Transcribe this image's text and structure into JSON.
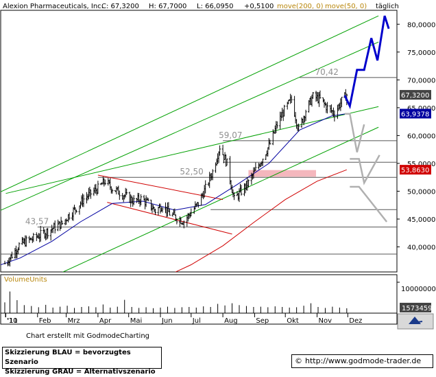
{
  "title_bar": {
    "name": "Alexion Pharmaceuticals, Inc.",
    "close": "C: 67,3200",
    "high": "H: 67,7000",
    "low": "L: 66,0950",
    "change": "+0,5100",
    "ma200": "move(200, 0)",
    "ma50": "move(50, 0)",
    "period": "täglich"
  },
  "credit": "Chart erstellt mit GodmodeCharting",
  "legend": {
    "blue": "Skizzierung BLAU = bevorzugtes Szenario",
    "grey": "Skizzierung GRAU = Alternativszenario"
  },
  "url": "http://www.godmode-trader.de",
  "copyright_symbol": "©",
  "colors": {
    "price": "#000000",
    "ma200": "#d00000",
    "ma50": "#0000a0",
    "trend": "#00a000",
    "channel": "#d00000",
    "blue_scenario": "#0000cc",
    "grey_scenario": "#b0b0b0",
    "gap_zone": "#f4b7bd"
  },
  "chart_data": {
    "type": "line",
    "title": "Alexion Pharmaceuticals, Inc.",
    "period": "täglich",
    "x_tick_labels": [
      "'10",
      "'11",
      "Feb",
      "Mrz",
      "Apr",
      "Mai",
      "Jun",
      "Jul",
      "Aug",
      "Sep",
      "Okt",
      "Nov",
      "Dez"
    ],
    "y_tick_labels": [
      "40,0000",
      "45,0000",
      "50,0000",
      "55,0000",
      "60,0000",
      "65,0000",
      "70,0000",
      "75,0000",
      "80,0000"
    ],
    "ylim": [
      35.5,
      82.5
    ],
    "log_scale": false,
    "grid": false,
    "price_series": {
      "name": "Alexion Pharmaceuticals, Inc.",
      "points": [
        [
          "2010-12-31",
          37.0
        ],
        [
          "2011-01-07",
          38.5
        ],
        [
          "2011-01-14",
          40.3
        ],
        [
          "2011-01-21",
          41.0
        ],
        [
          "2011-01-28",
          41.5
        ],
        [
          "2011-02-04",
          42.2
        ],
        [
          "2011-02-11",
          42.8
        ],
        [
          "2011-02-18",
          43.6
        ],
        [
          "2011-02-25",
          44.2
        ],
        [
          "2011-03-04",
          45.8
        ],
        [
          "2011-03-11",
          47.0
        ],
        [
          "2011-03-18",
          48.6
        ],
        [
          "2011-03-25",
          49.6
        ],
        [
          "2011-04-01",
          50.5
        ],
        [
          "2011-04-08",
          51.8
        ],
        [
          "2011-04-15",
          50.5
        ],
        [
          "2011-04-22",
          49.8
        ],
        [
          "2011-04-29",
          49.0
        ],
        [
          "2011-05-06",
          48.2
        ],
        [
          "2011-05-13",
          48.6
        ],
        [
          "2011-05-20",
          47.8
        ],
        [
          "2011-05-27",
          46.5
        ],
        [
          "2011-06-03",
          47.5
        ],
        [
          "2011-06-10",
          46.0
        ],
        [
          "2011-06-17",
          45.2
        ],
        [
          "2011-06-24",
          44.6
        ],
        [
          "2011-07-01",
          46.2
        ],
        [
          "2011-07-08",
          47.8
        ],
        [
          "2011-07-15",
          50.5
        ],
        [
          "2011-07-22",
          53.5
        ],
        [
          "2011-07-29",
          58.0
        ],
        [
          "2011-08-05",
          55.0
        ],
        [
          "2011-08-12",
          48.5
        ],
        [
          "2011-08-19",
          50.0
        ],
        [
          "2011-08-26",
          51.5
        ],
        [
          "2011-09-02",
          53.8
        ],
        [
          "2011-09-09",
          56.0
        ],
        [
          "2011-09-16",
          58.5
        ],
        [
          "2011-09-23",
          62.0
        ],
        [
          "2011-09-30",
          64.5
        ],
        [
          "2011-10-07",
          66.5
        ],
        [
          "2011-10-14",
          61.0
        ],
        [
          "2011-10-21",
          64.5
        ],
        [
          "2011-10-28",
          67.0
        ],
        [
          "2011-11-04",
          66.5
        ],
        [
          "2011-11-11",
          65.0
        ],
        [
          "2011-11-18",
          64.0
        ],
        [
          "2011-11-25",
          66.2
        ],
        [
          "2011-11-30",
          67.32
        ]
      ]
    },
    "series": [
      {
        "name": "move(200, 0)",
        "points": [
          [
            "2011-06-10",
            35.0
          ],
          [
            "2011-07-01",
            36.8
          ],
          [
            "2011-08-01",
            40.2
          ],
          [
            "2011-09-01",
            44.5
          ],
          [
            "2011-10-01",
            48.5
          ],
          [
            "2011-11-01",
            51.8
          ],
          [
            "2011-11-30",
            53.86
          ]
        ]
      },
      {
        "name": "move(50, 0)",
        "points": [
          [
            "2010-12-15",
            36.0
          ],
          [
            "2011-01-15",
            38.0
          ],
          [
            "2011-02-15",
            41.0
          ],
          [
            "2011-03-15",
            44.5
          ],
          [
            "2011-04-15",
            47.8
          ],
          [
            "2011-05-15",
            48.2
          ],
          [
            "2011-06-15",
            46.6
          ],
          [
            "2011-07-15",
            47.6
          ],
          [
            "2011-08-15",
            51.2
          ],
          [
            "2011-09-15",
            55.0
          ],
          [
            "2011-10-15",
            61.0
          ],
          [
            "2011-11-15",
            63.5
          ],
          [
            "2011-11-30",
            63.94
          ]
        ]
      }
    ],
    "levels": [
      {
        "label": "43,57",
        "value": 43.57
      },
      {
        "label": "52,50",
        "value": 52.5
      },
      {
        "label": "59,07",
        "value": 59.07
      },
      {
        "label": "70,42",
        "value": 70.42
      }
    ],
    "extra_horizontal_lines": [
      38.7,
      46.7,
      55.2
    ],
    "trend_lines": [
      {
        "from": [
          "2010-12-20",
          49.3
        ],
        "to": [
          "2011-12-31",
          81.5
        ]
      },
      {
        "from": [
          "2010-12-20",
          46.0
        ],
        "to": [
          "2011-12-31",
          76.8
        ]
      },
      {
        "from": [
          "2011-01-01",
          49.6
        ],
        "to": [
          "2011-12-31",
          65.2
        ]
      },
      {
        "from": [
          "2011-02-20",
          35.0
        ],
        "to": [
          "2011-12-31",
          61.5
        ]
      }
    ],
    "down_channel": [
      {
        "from": [
          "2011-04-01",
          52.9
        ],
        "to": [
          "2011-08-01",
          48.5
        ]
      },
      {
        "from": [
          "2011-04-10",
          48.0
        ],
        "to": [
          "2011-08-10",
          42.3
        ]
      }
    ],
    "gap_zone": {
      "from": "2011-08-26",
      "to": "2011-10-31",
      "low": 52.6,
      "high": 53.8
    },
    "blue_scenario": [
      [
        "2011-11-28",
        67.2
      ],
      [
        "2011-12-03",
        65.3
      ],
      [
        "2011-12-10",
        71.8
      ],
      [
        "2011-12-17",
        71.8
      ],
      [
        "2011-12-24",
        77.5
      ],
      [
        "2011-12-30",
        73.5
      ],
      [
        "2012-01-06",
        81.5
      ],
      [
        "2012-01-10",
        79.2
      ]
    ],
    "grey_scenario_1": [
      [
        "2011-11-28",
        63.9
      ],
      [
        "2011-12-03",
        63.9
      ],
      [
        "2011-12-10",
        57.0
      ],
      [
        "2011-12-17",
        62.0
      ]
    ],
    "grey_scenario_2": [
      [
        "2011-12-03",
        55.8
      ],
      [
        "2011-12-12",
        55.8
      ],
      [
        "2011-12-17",
        51.5
      ],
      [
        "2012-01-01",
        56.5
      ]
    ],
    "grey_scenario_3": [
      [
        "2011-12-03",
        50.8
      ],
      [
        "2011-12-12",
        50.8
      ],
      [
        "2012-01-08",
        44.5
      ]
    ],
    "price_labels": [
      {
        "label": "67,3200",
        "value": 67.32,
        "color": "#000000"
      },
      {
        "label": "63,9378",
        "value": 63.9378,
        "color": "#0000a0"
      },
      {
        "label": "53,8630",
        "value": 53.863,
        "color": "#d00000"
      }
    ],
    "volume": {
      "label": "VolumeUnits",
      "ytick_label": "10000000",
      "current_label": "1573459",
      "ylim": [
        0,
        12000000
      ],
      "bars": [
        [
          "2010-12-31",
          3500000
        ],
        [
          "2011-01-05",
          7000000
        ],
        [
          "2011-01-12",
          4200000
        ],
        [
          "2011-01-19",
          2600000
        ],
        [
          "2011-01-26",
          2300000
        ],
        [
          "2011-02-02",
          1900000
        ],
        [
          "2011-02-09",
          2700000
        ],
        [
          "2011-02-16",
          1800000
        ],
        [
          "2011-02-23",
          2100000
        ],
        [
          "2011-03-02",
          2400000
        ],
        [
          "2011-03-09",
          1700000
        ],
        [
          "2011-03-16",
          2000000
        ],
        [
          "2011-03-23",
          2200000
        ],
        [
          "2011-03-30",
          1900000
        ],
        [
          "2011-04-06",
          2800000
        ],
        [
          "2011-04-13",
          1800000
        ],
        [
          "2011-04-20",
          2100000
        ],
        [
          "2011-04-27",
          4300000
        ],
        [
          "2011-05-04",
          2000000
        ],
        [
          "2011-05-11",
          1700000
        ],
        [
          "2011-05-18",
          1900000
        ],
        [
          "2011-05-25",
          1600000
        ],
        [
          "2011-06-01",
          1800000
        ],
        [
          "2011-06-08",
          2100000
        ],
        [
          "2011-06-15",
          1700000
        ],
        [
          "2011-06-22",
          1900000
        ],
        [
          "2011-06-29",
          2000000
        ],
        [
          "2011-07-06",
          1800000
        ],
        [
          "2011-07-13",
          2200000
        ],
        [
          "2011-07-20",
          2000000
        ],
        [
          "2011-07-27",
          3000000
        ],
        [
          "2011-08-03",
          2500000
        ],
        [
          "2011-08-10",
          3200000
        ],
        [
          "2011-08-17",
          2600000
        ],
        [
          "2011-08-24",
          2300000
        ],
        [
          "2011-08-31",
          2000000
        ],
        [
          "2011-09-07",
          2100000
        ],
        [
          "2011-09-14",
          1900000
        ],
        [
          "2011-09-21",
          2200000
        ],
        [
          "2011-09-28",
          2000000
        ],
        [
          "2011-10-05",
          1800000
        ],
        [
          "2011-10-12",
          1900000
        ],
        [
          "2011-10-19",
          2400000
        ],
        [
          "2011-10-26",
          3200000
        ],
        [
          "2011-11-02",
          2000000
        ],
        [
          "2011-11-09",
          1700000
        ],
        [
          "2011-11-16",
          2100000
        ],
        [
          "2011-11-23",
          1800000
        ],
        [
          "2011-11-30",
          1573459
        ]
      ]
    }
  }
}
